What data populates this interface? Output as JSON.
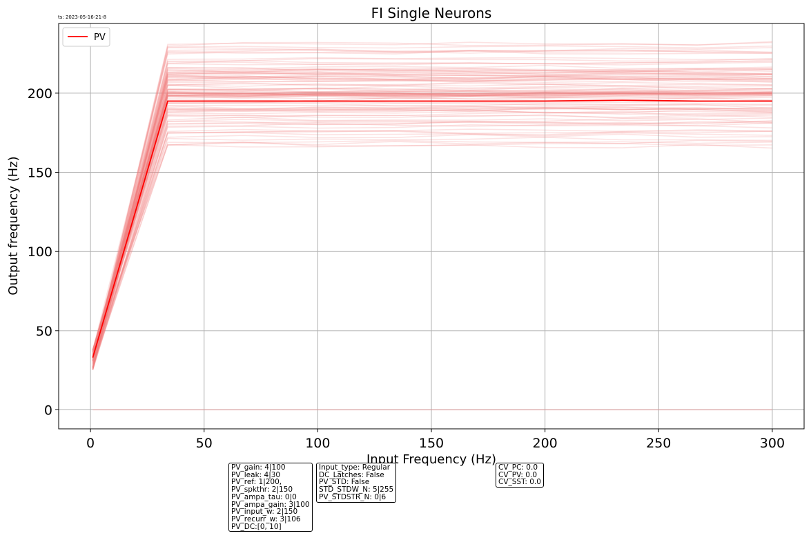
{
  "timestamp": "ts: 2023-05-16-21-8",
  "colors": {
    "mean_line": "#ff0000",
    "trials": "#f08080",
    "grid": "#b0b0b0"
  },
  "info_boxes": [
    [
      "PV_gain: 4|100",
      "PV_leak: 4|30",
      "PV_ref: 1|200,",
      "PV_spkthr: 2|150",
      "PV_ampa_tau: 0|0",
      "PV_ampa_gain: 3|100",
      "PV_input_w: 2|150",
      "PV_recurr_w: 3|106",
      "PV_DC:[0, 10]"
    ],
    [
      "Input_type: Regular",
      "DC_Latches: False",
      "PV_STD: False",
      "STD_STDW_N: 5|255",
      "PV_STDSTR_N: 0|6"
    ],
    [
      "CV_PC: 0.0",
      "CV_PV: 0.0",
      "CV_SST: 0.0"
    ]
  ],
  "chart_data": {
    "type": "line",
    "title": "FI Single Neurons",
    "xlabel": "Input Frequency (Hz)",
    "ylabel": "Output frequency (Hz)",
    "xlim": [
      -14,
      314
    ],
    "ylim": [
      -12,
      244
    ],
    "xticks": [
      0,
      50,
      100,
      150,
      200,
      250,
      300
    ],
    "yticks": [
      0,
      50,
      100,
      150,
      200
    ],
    "grid": true,
    "legend": {
      "position": "top-left",
      "entries": [
        "PV"
      ]
    },
    "x": [
      1,
      34,
      67,
      100,
      134,
      167,
      200,
      234,
      267,
      300
    ],
    "series": [
      {
        "name": "PV",
        "color": "#ff0000",
        "values": [
          33,
          195,
          195,
          195,
          195,
          195,
          195,
          195.5,
          195,
          195
        ]
      }
    ],
    "trials": {
      "count": 100,
      "first_point_range": [
        25,
        38
      ],
      "plateau_range": [
        166,
        233
      ],
      "zero_line": true
    }
  }
}
